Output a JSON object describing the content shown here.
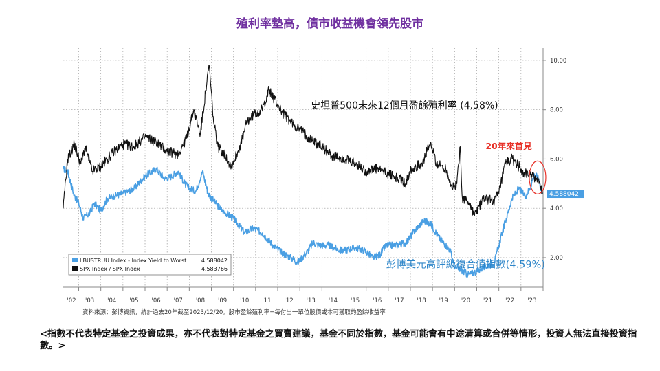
{
  "page": {
    "title": "殖利率墊高，債市收益機會領先股市",
    "source": "資料來源：彭博資訊，統計過去20年截至2023/12/20。股市盈餘殖利率=每付出一單位股價或本可獲取的盈餘收益率",
    "disclaimer": "<指數不代表特定基金之投資成果，亦不代表對特定基金之買賣建議，基金不同於指數，基金可能會有中途清算或合併等情形，投資人無法直接投資指數。>"
  },
  "colors": {
    "blue": "#4a9fe3",
    "black": "#111111",
    "title": "#7030a0",
    "annotation_red": "#e8332a",
    "annotation_blue": "#2e86c9"
  },
  "chart_data": {
    "type": "line",
    "x_ticks": [
      "'02",
      "'03",
      "'04",
      "'05",
      "'06",
      "'07",
      "'08",
      "'09",
      "'10",
      "'11",
      "'12",
      "'13",
      "'14",
      "'15",
      "'16",
      "'17",
      "'18",
      "'19",
      "'20",
      "'21",
      "'22",
      "'23"
    ],
    "y_ticks": [
      "2.00",
      "4.00",
      "6.00",
      "8.00",
      "10.00"
    ],
    "ylim": [
      0.8,
      10.5
    ],
    "xlim": [
      2002.3,
      2024.0
    ],
    "grid": true,
    "legend_position": "bottom-left",
    "legend": [
      {
        "label": "LBUSTRUU Index - Index Yield to Worst",
        "last": "4.588042",
        "color": "#4a9fe3"
      },
      {
        "label": "SPX Index / SPX Index",
        "last": "4.583766",
        "color": "#111111"
      }
    ],
    "last_value_label": "4.588042",
    "annotations": {
      "spx": "史坦普500未來12個月盈餘殖利率 (4.58%)",
      "bond": "彭博美元高評級複合債指數(4.59%)",
      "high": "20年來首見"
    },
    "series": [
      {
        "name": "LBUSTRUU Index - Index Yield to Worst",
        "x": [
          2002.3,
          2002.5,
          2002.8,
          2003.0,
          2003.2,
          2003.5,
          2003.7,
          2004.0,
          2004.3,
          2004.6,
          2005.0,
          2005.5,
          2006.0,
          2006.5,
          2006.9,
          2007.2,
          2007.5,
          2007.8,
          2008.0,
          2008.3,
          2008.6,
          2008.85,
          2009.1,
          2009.5,
          2010.0,
          2010.5,
          2010.9,
          2011.3,
          2011.8,
          2012.2,
          2012.6,
          2012.9,
          2013.3,
          2013.6,
          2013.9,
          2014.3,
          2014.8,
          2015.0,
          2015.5,
          2015.9,
          2016.3,
          2016.6,
          2016.9,
          2017.3,
          2017.8,
          2018.2,
          2018.6,
          2018.9,
          2019.3,
          2019.8,
          2020.0,
          2020.3,
          2020.6,
          2020.9,
          2021.3,
          2021.8,
          2022.0,
          2022.3,
          2022.6,
          2022.9,
          2023.2,
          2023.4,
          2023.6,
          2023.8,
          2023.97
        ],
        "values": [
          5.6,
          5.5,
          4.5,
          4.2,
          3.6,
          3.8,
          4.2,
          3.9,
          4.4,
          4.5,
          4.6,
          4.8,
          5.3,
          5.6,
          5.2,
          5.3,
          5.5,
          5.0,
          4.8,
          4.7,
          5.5,
          4.6,
          4.3,
          3.9,
          3.6,
          3.0,
          3.2,
          3.0,
          2.5,
          2.2,
          2.0,
          1.8,
          2.2,
          2.6,
          2.5,
          2.5,
          2.3,
          2.3,
          2.4,
          2.3,
          2.0,
          2.1,
          2.5,
          2.5,
          2.6,
          3.1,
          3.5,
          3.4,
          2.8,
          2.3,
          1.6,
          1.5,
          1.3,
          1.4,
          1.6,
          1.8,
          2.5,
          3.5,
          4.4,
          4.8,
          4.5,
          4.8,
          5.4,
          5.2,
          4.59
        ]
      },
      {
        "name": "SPX Index / SPX Index",
        "x": [
          2002.3,
          2002.5,
          2002.8,
          2003.1,
          2003.3,
          2003.6,
          2004.0,
          2004.3,
          2004.6,
          2005.0,
          2005.5,
          2006.0,
          2006.5,
          2007.0,
          2007.5,
          2007.9,
          2008.2,
          2008.5,
          2008.75,
          2008.9,
          2009.1,
          2009.3,
          2009.6,
          2009.9,
          2010.2,
          2010.4,
          2010.6,
          2010.9,
          2011.3,
          2011.6,
          2011.8,
          2012.2,
          2012.6,
          2013.0,
          2013.5,
          2014.0,
          2014.5,
          2015.0,
          2015.5,
          2016.0,
          2016.5,
          2017.0,
          2017.5,
          2017.8,
          2018.0,
          2018.5,
          2018.9,
          2019.2,
          2019.6,
          2019.9,
          2020.1,
          2020.25,
          2020.35,
          2020.6,
          2020.9,
          2021.3,
          2021.8,
          2022.0,
          2022.3,
          2022.6,
          2022.9,
          2023.2,
          2023.5,
          2023.8,
          2023.97
        ],
        "values": [
          4.0,
          6.0,
          6.6,
          5.8,
          6.5,
          5.5,
          5.7,
          6.0,
          6.3,
          6.6,
          6.5,
          6.9,
          6.7,
          6.3,
          6.2,
          6.9,
          8.0,
          7.0,
          8.8,
          9.8,
          7.5,
          6.5,
          6.2,
          5.7,
          6.3,
          6.8,
          7.5,
          7.8,
          8.0,
          8.8,
          8.5,
          7.9,
          7.5,
          7.2,
          6.8,
          6.5,
          6.1,
          6.0,
          5.8,
          5.5,
          5.6,
          5.4,
          5.2,
          5.0,
          5.6,
          5.8,
          6.6,
          5.8,
          5.6,
          4.8,
          5.0,
          6.5,
          4.4,
          4.3,
          3.7,
          4.4,
          4.3,
          4.6,
          5.8,
          6.0,
          5.7,
          5.4,
          5.3,
          5.2,
          4.58
        ]
      }
    ]
  }
}
